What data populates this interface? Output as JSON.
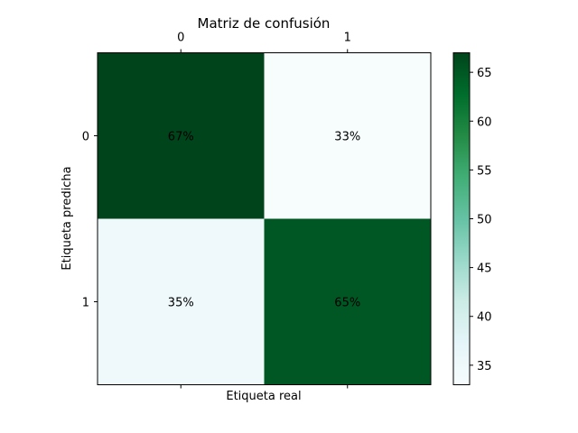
{
  "chart_data": {
    "type": "heatmap",
    "title": "Matriz de confusión",
    "xlabel": "Etiqueta real",
    "ylabel": "Etiqueta predicha",
    "x_categories": [
      "0",
      "1"
    ],
    "y_categories": [
      "0",
      "1"
    ],
    "values": [
      [
        67,
        33
      ],
      [
        35,
        65
      ]
    ],
    "cell_labels": [
      [
        "67%",
        "33%"
      ],
      [
        "35%",
        "65%"
      ]
    ],
    "colormap": "BuGn",
    "color_range": [
      33,
      67
    ],
    "colorbar_ticks": [
      "35",
      "40",
      "45",
      "50",
      "55",
      "60",
      "65"
    ],
    "colorbar_tick_values": [
      35,
      40,
      45,
      50,
      55,
      60,
      65
    ]
  }
}
